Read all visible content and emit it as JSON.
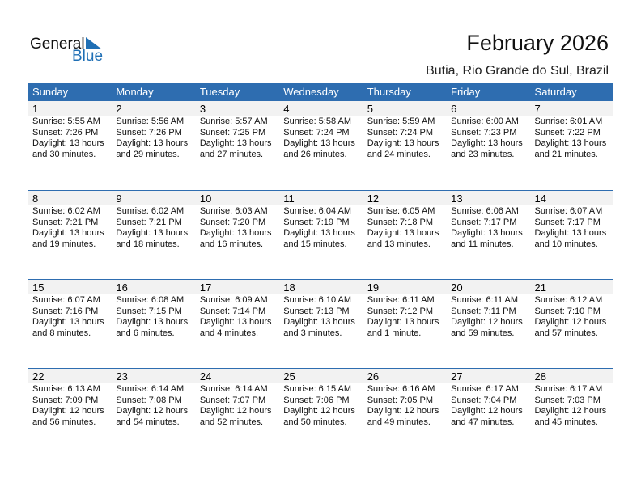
{
  "logo": {
    "word1": "General",
    "word2": "Blue"
  },
  "header": {
    "title": "February 2026",
    "location": "Butia, Rio Grande do Sul, Brazil"
  },
  "colors": {
    "accent": "#2e6db0",
    "day_band": "#f2f2f2"
  },
  "weekdays": [
    "Sunday",
    "Monday",
    "Tuesday",
    "Wednesday",
    "Thursday",
    "Friday",
    "Saturday"
  ],
  "weeks": [
    [
      {
        "day": "1",
        "sunrise": "Sunrise: 5:55 AM",
        "sunset": "Sunset: 7:26 PM",
        "daylight": "Daylight: 13 hours",
        "minutes": "and 30 minutes."
      },
      {
        "day": "2",
        "sunrise": "Sunrise: 5:56 AM",
        "sunset": "Sunset: 7:26 PM",
        "daylight": "Daylight: 13 hours",
        "minutes": "and 29 minutes."
      },
      {
        "day": "3",
        "sunrise": "Sunrise: 5:57 AM",
        "sunset": "Sunset: 7:25 PM",
        "daylight": "Daylight: 13 hours",
        "minutes": "and 27 minutes."
      },
      {
        "day": "4",
        "sunrise": "Sunrise: 5:58 AM",
        "sunset": "Sunset: 7:24 PM",
        "daylight": "Daylight: 13 hours",
        "minutes": "and 26 minutes."
      },
      {
        "day": "5",
        "sunrise": "Sunrise: 5:59 AM",
        "sunset": "Sunset: 7:24 PM",
        "daylight": "Daylight: 13 hours",
        "minutes": "and 24 minutes."
      },
      {
        "day": "6",
        "sunrise": "Sunrise: 6:00 AM",
        "sunset": "Sunset: 7:23 PM",
        "daylight": "Daylight: 13 hours",
        "minutes": "and 23 minutes."
      },
      {
        "day": "7",
        "sunrise": "Sunrise: 6:01 AM",
        "sunset": "Sunset: 7:22 PM",
        "daylight": "Daylight: 13 hours",
        "minutes": "and 21 minutes."
      }
    ],
    [
      {
        "day": "8",
        "sunrise": "Sunrise: 6:02 AM",
        "sunset": "Sunset: 7:21 PM",
        "daylight": "Daylight: 13 hours",
        "minutes": "and 19 minutes."
      },
      {
        "day": "9",
        "sunrise": "Sunrise: 6:02 AM",
        "sunset": "Sunset: 7:21 PM",
        "daylight": "Daylight: 13 hours",
        "minutes": "and 18 minutes."
      },
      {
        "day": "10",
        "sunrise": "Sunrise: 6:03 AM",
        "sunset": "Sunset: 7:20 PM",
        "daylight": "Daylight: 13 hours",
        "minutes": "and 16 minutes."
      },
      {
        "day": "11",
        "sunrise": "Sunrise: 6:04 AM",
        "sunset": "Sunset: 7:19 PM",
        "daylight": "Daylight: 13 hours",
        "minutes": "and 15 minutes."
      },
      {
        "day": "12",
        "sunrise": "Sunrise: 6:05 AM",
        "sunset": "Sunset: 7:18 PM",
        "daylight": "Daylight: 13 hours",
        "minutes": "and 13 minutes."
      },
      {
        "day": "13",
        "sunrise": "Sunrise: 6:06 AM",
        "sunset": "Sunset: 7:17 PM",
        "daylight": "Daylight: 13 hours",
        "minutes": "and 11 minutes."
      },
      {
        "day": "14",
        "sunrise": "Sunrise: 6:07 AM",
        "sunset": "Sunset: 7:17 PM",
        "daylight": "Daylight: 13 hours",
        "minutes": "and 10 minutes."
      }
    ],
    [
      {
        "day": "15",
        "sunrise": "Sunrise: 6:07 AM",
        "sunset": "Sunset: 7:16 PM",
        "daylight": "Daylight: 13 hours",
        "minutes": "and 8 minutes."
      },
      {
        "day": "16",
        "sunrise": "Sunrise: 6:08 AM",
        "sunset": "Sunset: 7:15 PM",
        "daylight": "Daylight: 13 hours",
        "minutes": "and 6 minutes."
      },
      {
        "day": "17",
        "sunrise": "Sunrise: 6:09 AM",
        "sunset": "Sunset: 7:14 PM",
        "daylight": "Daylight: 13 hours",
        "minutes": "and 4 minutes."
      },
      {
        "day": "18",
        "sunrise": "Sunrise: 6:10 AM",
        "sunset": "Sunset: 7:13 PM",
        "daylight": "Daylight: 13 hours",
        "minutes": "and 3 minutes."
      },
      {
        "day": "19",
        "sunrise": "Sunrise: 6:11 AM",
        "sunset": "Sunset: 7:12 PM",
        "daylight": "Daylight: 13 hours",
        "minutes": "and 1 minute."
      },
      {
        "day": "20",
        "sunrise": "Sunrise: 6:11 AM",
        "sunset": "Sunset: 7:11 PM",
        "daylight": "Daylight: 12 hours",
        "minutes": "and 59 minutes."
      },
      {
        "day": "21",
        "sunrise": "Sunrise: 6:12 AM",
        "sunset": "Sunset: 7:10 PM",
        "daylight": "Daylight: 12 hours",
        "minutes": "and 57 minutes."
      }
    ],
    [
      {
        "day": "22",
        "sunrise": "Sunrise: 6:13 AM",
        "sunset": "Sunset: 7:09 PM",
        "daylight": "Daylight: 12 hours",
        "minutes": "and 56 minutes."
      },
      {
        "day": "23",
        "sunrise": "Sunrise: 6:14 AM",
        "sunset": "Sunset: 7:08 PM",
        "daylight": "Daylight: 12 hours",
        "minutes": "and 54 minutes."
      },
      {
        "day": "24",
        "sunrise": "Sunrise: 6:14 AM",
        "sunset": "Sunset: 7:07 PM",
        "daylight": "Daylight: 12 hours",
        "minutes": "and 52 minutes."
      },
      {
        "day": "25",
        "sunrise": "Sunrise: 6:15 AM",
        "sunset": "Sunset: 7:06 PM",
        "daylight": "Daylight: 12 hours",
        "minutes": "and 50 minutes."
      },
      {
        "day": "26",
        "sunrise": "Sunrise: 6:16 AM",
        "sunset": "Sunset: 7:05 PM",
        "daylight": "Daylight: 12 hours",
        "minutes": "and 49 minutes."
      },
      {
        "day": "27",
        "sunrise": "Sunrise: 6:17 AM",
        "sunset": "Sunset: 7:04 PM",
        "daylight": "Daylight: 12 hours",
        "minutes": "and 47 minutes."
      },
      {
        "day": "28",
        "sunrise": "Sunrise: 6:17 AM",
        "sunset": "Sunset: 7:03 PM",
        "daylight": "Daylight: 12 hours",
        "minutes": "and 45 minutes."
      }
    ]
  ]
}
